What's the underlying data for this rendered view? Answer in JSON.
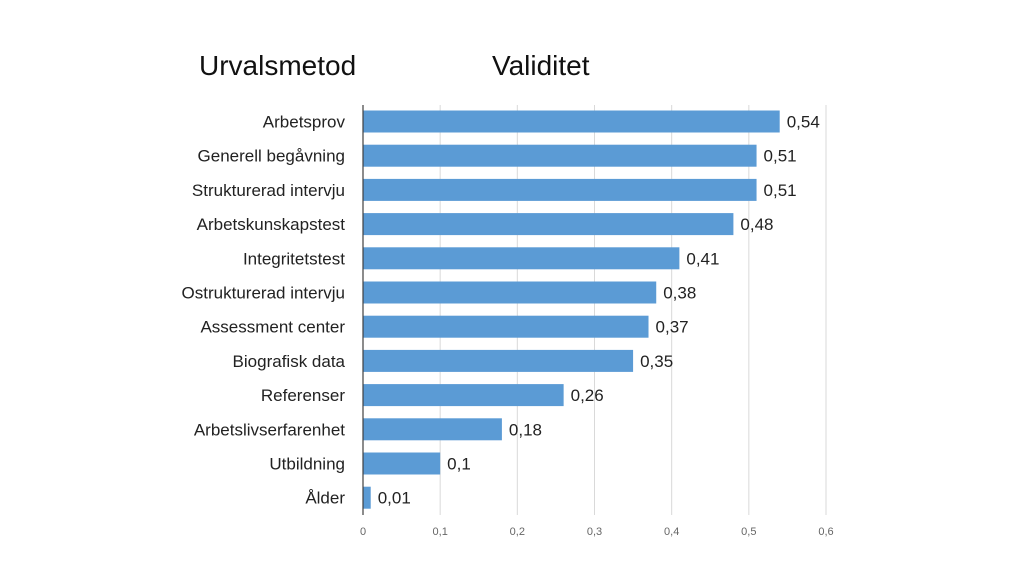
{
  "headings": {
    "left": "Urvalsmetod",
    "right": "Validitet"
  },
  "colors": {
    "bar": "#5b9bd5",
    "grid": "#d9d9d9",
    "axis": "#404040"
  },
  "chart_data": {
    "type": "bar",
    "orientation": "horizontal",
    "categories": [
      "Arbetsprov",
      "Generell begåvning",
      "Strukturerad intervju",
      "Arbetskunskapstest",
      "Integritetstest",
      "Ostrukturerad intervju",
      "Assessment center",
      "Biografisk data",
      "Referenser",
      "Arbetslivserfarenhet",
      "Utbildning",
      "Ålder"
    ],
    "values": [
      0.54,
      0.51,
      0.51,
      0.48,
      0.41,
      0.38,
      0.37,
      0.35,
      0.26,
      0.18,
      0.1,
      0.01
    ],
    "value_labels": [
      "0,54",
      "0,51",
      "0,51",
      "0,48",
      "0,41",
      "0,38",
      "0,37",
      "0,35",
      "0,26",
      "0,18",
      "0,1",
      "0,01"
    ],
    "xlim": [
      0,
      0.6
    ],
    "ticks": [
      0,
      0.1,
      0.2,
      0.3,
      0.4,
      0.5,
      0.6
    ],
    "tick_labels": [
      "0",
      "0,1",
      "0,2",
      "0,3",
      "0,4",
      "0,5",
      "0,6"
    ],
    "grid": true,
    "legend": "none"
  }
}
